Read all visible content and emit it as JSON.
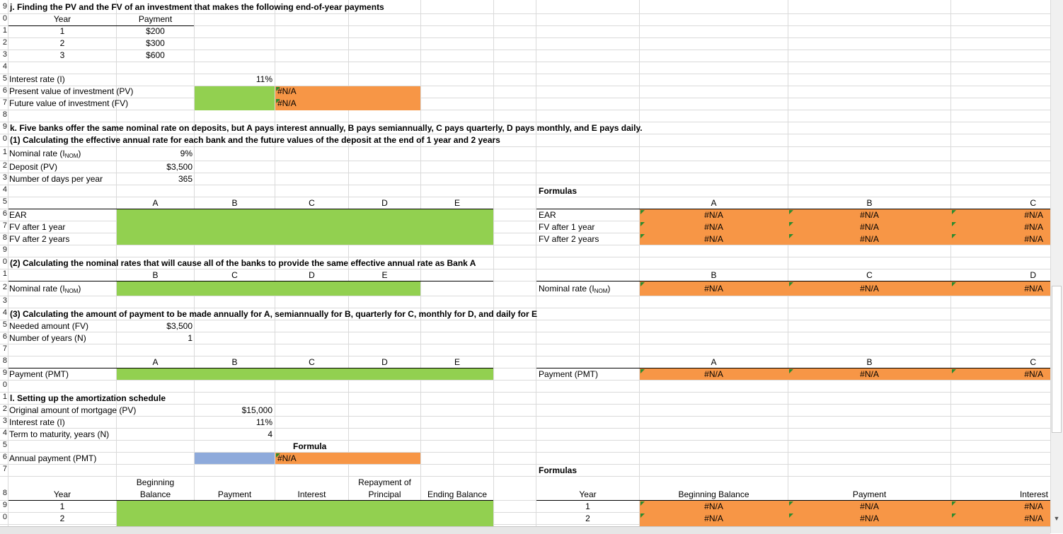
{
  "row_numbers": {
    "r0": "9",
    "r1": "0",
    "r2": "1",
    "r3": "2",
    "r4": "3",
    "r5": "4",
    "r6": "5",
    "r7": "6",
    "r8": "7",
    "r9": "8",
    "r10": "9",
    "r11": "0",
    "r12": "1",
    "r13": "2",
    "r14": "3",
    "r15": "4",
    "r16": "5",
    "r17": "6",
    "r18": "7",
    "r19": "8",
    "r20": "9",
    "r21": "0",
    "r22": "1",
    "r23": "2",
    "r24": "3",
    "r25": "4",
    "r26": "5",
    "r27": "6",
    "r28": "7",
    "r29": "8",
    "r30": "9",
    "r31": "0",
    "r32": "1",
    "r33": "2",
    "r34": "3",
    "r35": "4",
    "r36": "5",
    "r37": "6",
    "r38": "7",
    "r39": "8",
    "r40": "9",
    "r41": "0"
  },
  "sec_j": {
    "title": "j. Finding the PV and the FV of an investment that makes the following end-of-year payments",
    "col_year": "Year",
    "col_payment": "Payment",
    "rows": [
      {
        "year": "1",
        "payment": "$200"
      },
      {
        "year": "2",
        "payment": "$300"
      },
      {
        "year": "3",
        "payment": "$600"
      }
    ],
    "interest_label": "Interest rate (I)",
    "interest_value": "11%",
    "pv_label": "Present value of investment (PV)",
    "fv_label": "Future value of investment (FV)",
    "pv_formula": "#N/A",
    "fv_formula": "#N/A"
  },
  "sec_k": {
    "title": "k. Five banks offer the same nominal rate on deposits, but A pays interest annually, B pays semiannually, C pays quarterly, D pays monthly, and E pays daily.",
    "sub1": "(1) Calculating the effective annual rate for each bank and the future values of the deposit at the end of 1 year and 2 years",
    "nominal_label": "Nominal rate (I",
    "nominal_sub": "NOM",
    "nominal_close": ")",
    "nominal_value": "9%",
    "deposit_label": "Deposit (PV)",
    "deposit_value": "$3,500",
    "days_label": "Number of days per year",
    "days_value": "365",
    "formulas_label": "Formulas",
    "banks": [
      "A",
      "B",
      "C",
      "D",
      "E"
    ],
    "ear_label": "EAR",
    "fv1_label": "FV after 1 year",
    "fv2_label": "FV after 2 years",
    "formula_banks": [
      "A",
      "B",
      "C"
    ],
    "na": "#N/A",
    "sub2": "(2) Calculating the nominal rates that will cause all of the banks to provide the same effective annual rate as Bank A",
    "banks2": [
      "B",
      "C",
      "D",
      "E"
    ],
    "formula_banks2": [
      "B",
      "C",
      "D"
    ],
    "sub3": "(3) Calculating the amount of payment to be made annually for A, semiannually for B, quarterly for C, monthly for D, and daily for E",
    "needed_label": "Needed amount (FV)",
    "needed_value": "$3,500",
    "years_label": "Number of years (N)",
    "years_value": "1",
    "pmt_label": "Payment (PMT)"
  },
  "sec_l": {
    "title": "l. Setting up the amortization schedule",
    "mortgage_label": "Original amount of mortgage (PV)",
    "mortgage_value": "$15,000",
    "interest_label": "Interest rate (I)",
    "interest_value": "11%",
    "term_label": "Term to maturity, years (N)",
    "term_value": "4",
    "formula_label": "Formula",
    "annual_pmt_label": "Annual payment (PMT)",
    "annual_pmt_value": "#N/A",
    "formulas_label": "Formulas",
    "hdr_year": "Year",
    "hdr_beginning_1": "Beginning",
    "hdr_beginning_2": "Balance",
    "hdr_payment": "Payment",
    "hdr_interest": "Interest",
    "hdr_repayment_1": "Repayment of",
    "hdr_repayment_2": "Principal",
    "hdr_ending": "Ending Balance",
    "years": [
      "1",
      "2"
    ],
    "f_year": "Year",
    "f_beginning": "Beginning Balance",
    "f_payment": "Payment",
    "f_interest": "Interest",
    "f_years": [
      "1",
      "2"
    ],
    "na": "#N/A"
  },
  "colors": {
    "green": "#92d050",
    "orange": "#f79646",
    "blue": "#8eaadb"
  }
}
